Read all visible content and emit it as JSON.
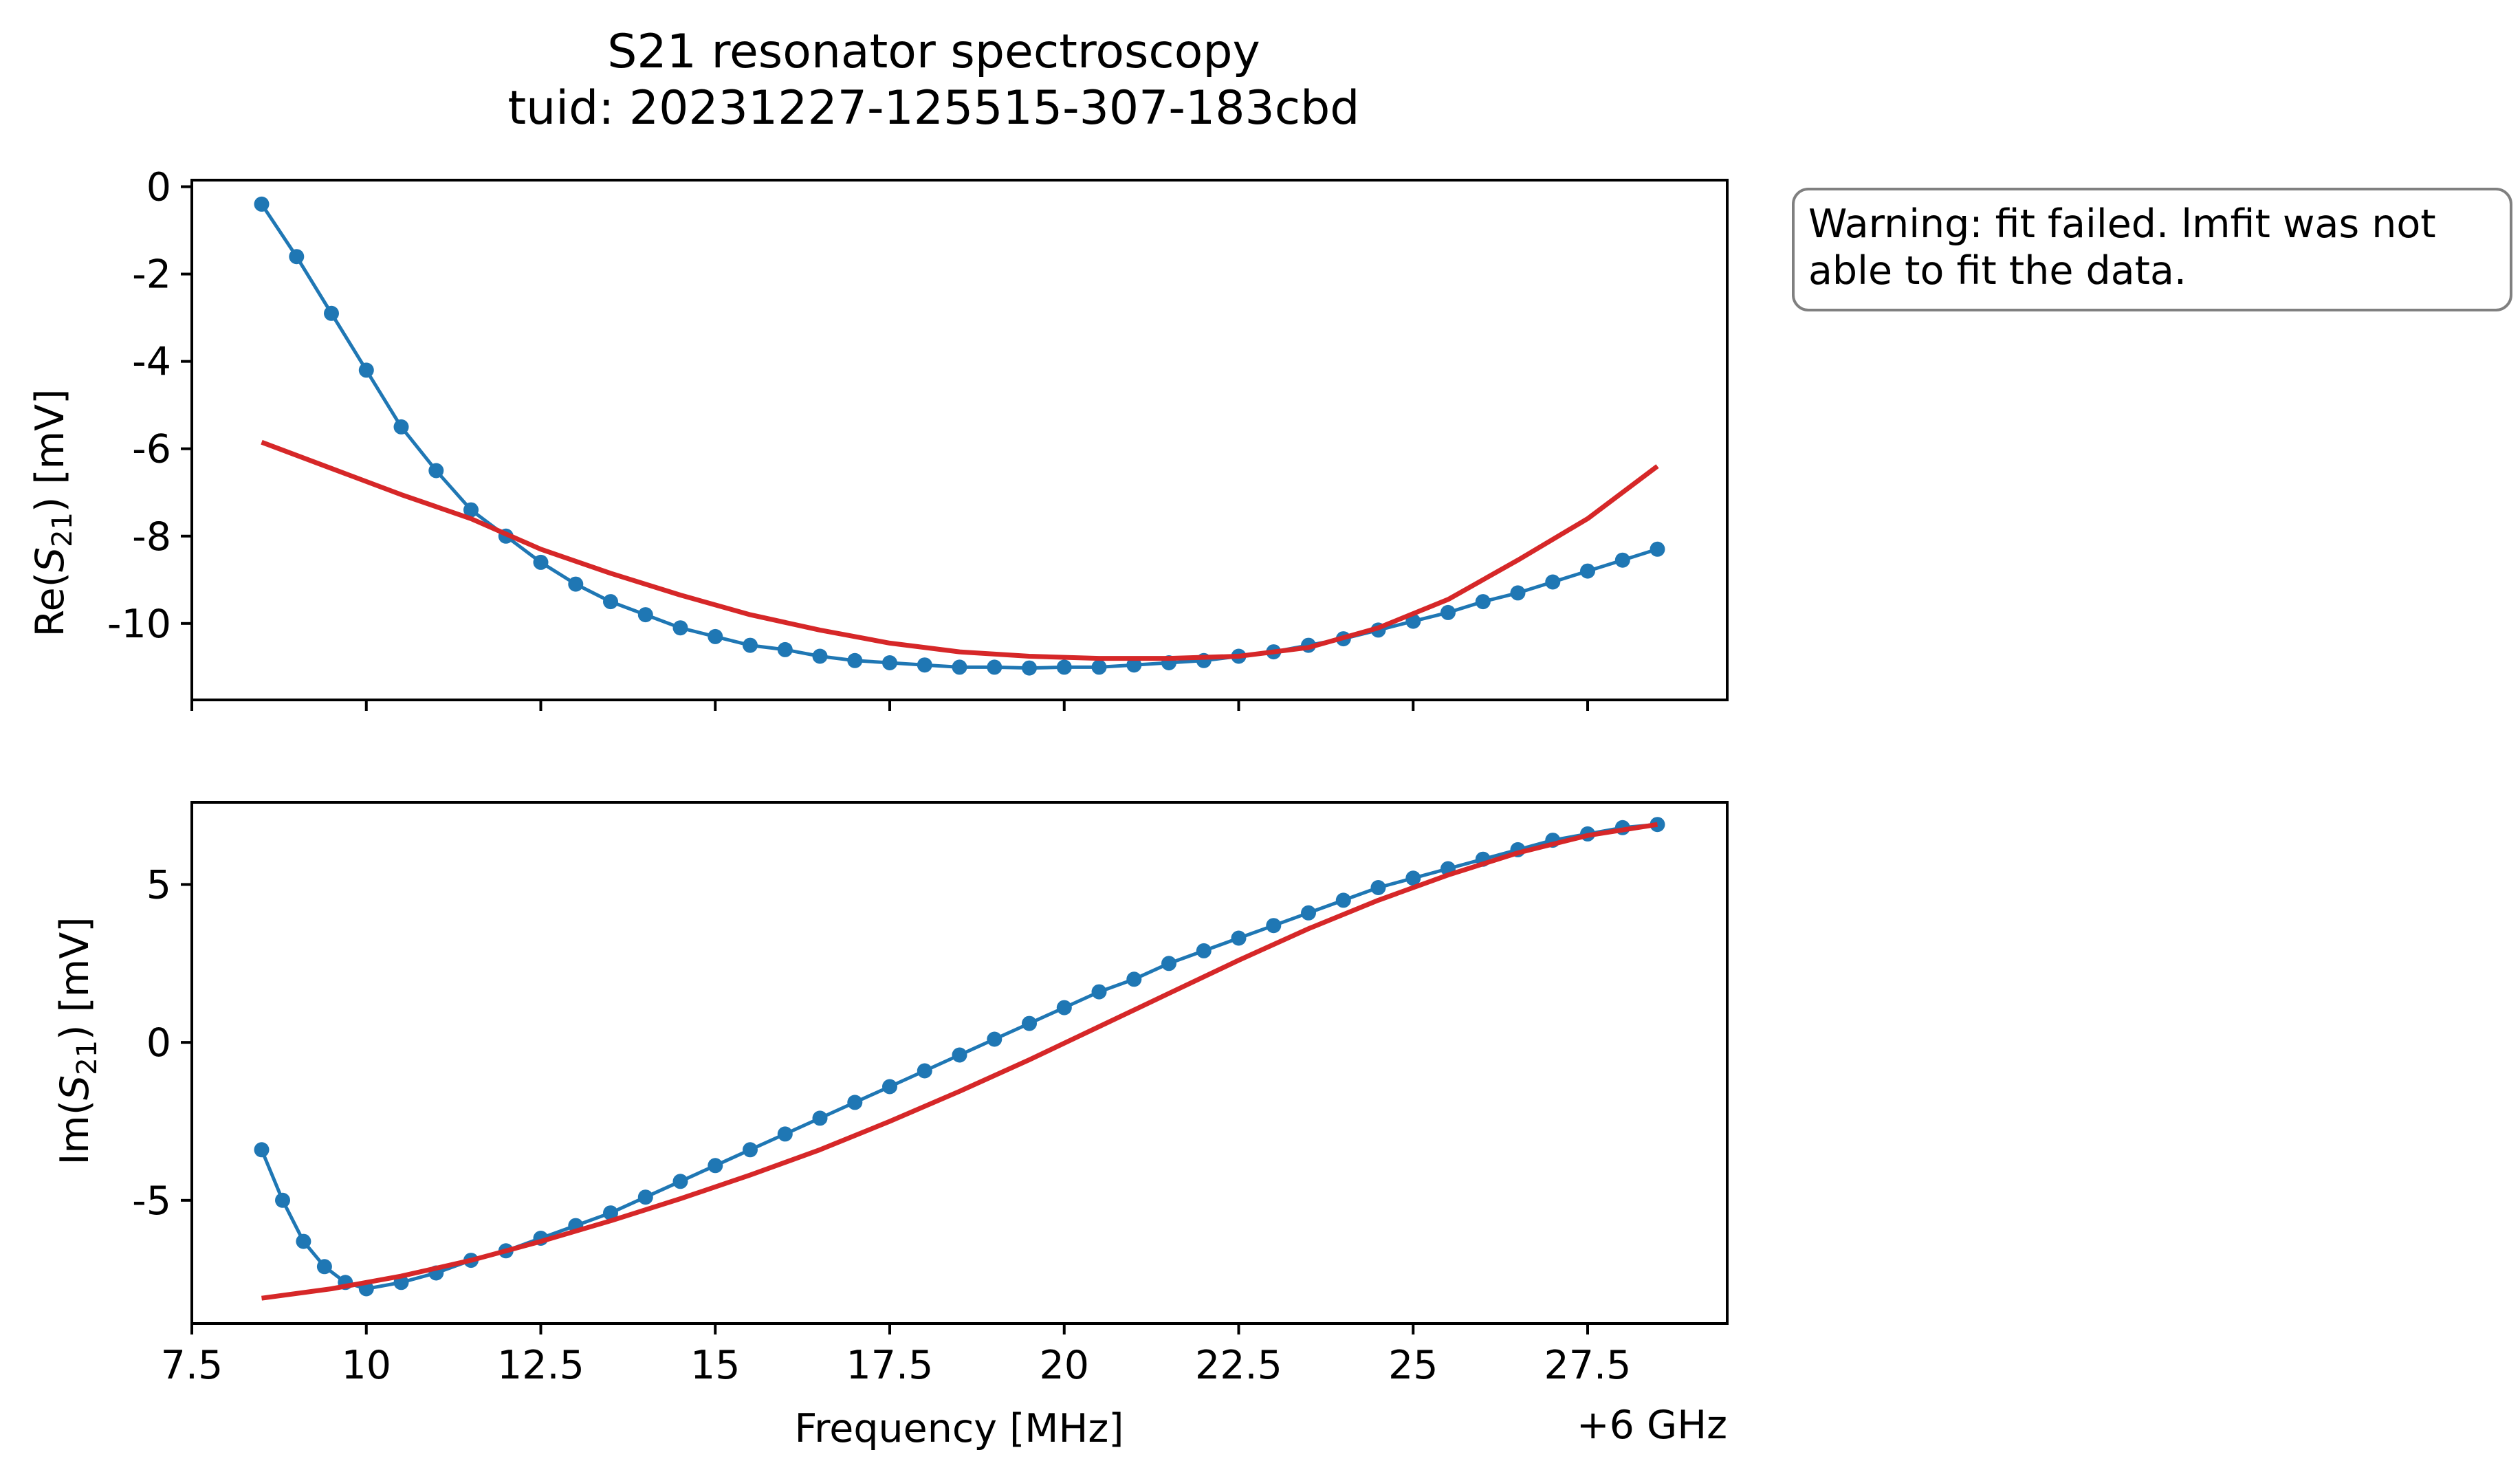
{
  "figure": {
    "title_line1": "S21 resonator spectroscopy",
    "title_line2": "tuid: 20231227-125515-307-183cbd",
    "warning_line1": "Warning: fit failed. lmfit was not",
    "warning_line2": "able to fit the data.",
    "x_offset_label": "+6 GHz"
  },
  "chart_data": [
    {
      "type": "line",
      "panel": "top",
      "title": "",
      "xlabel": "",
      "ylabel": "Re(S21) [mV]",
      "xlim": [
        7.5,
        29.5
      ],
      "ylim": [
        -11.75,
        0.15
      ],
      "xticks": [
        7.5,
        10,
        12.5,
        15,
        17.5,
        20,
        22.5,
        25,
        27.5
      ],
      "xticklabels_visible": false,
      "yticks": [
        0,
        -2,
        -4,
        -6,
        -8,
        -10
      ],
      "yticklabels": [
        "0",
        "-2",
        "-4",
        "-6",
        "-8",
        "-10"
      ],
      "grid": false,
      "series": [
        {
          "style": "markers+line",
          "color": "#1f77b4",
          "x": [
            8.5,
            9.0,
            9.5,
            10.0,
            10.5,
            11.0,
            11.5,
            12.0,
            12.5,
            13.0,
            13.5,
            14.0,
            14.5,
            15.0,
            15.5,
            16.0,
            16.5,
            17.0,
            17.5,
            18.0,
            18.5,
            19.0,
            19.5,
            20.0,
            20.5,
            21.0,
            21.5,
            22.0,
            22.5,
            23.0,
            23.5,
            24.0,
            24.5,
            25.0,
            25.5,
            26.0,
            26.5,
            27.0,
            27.5,
            28.0,
            28.5
          ],
          "y": [
            -0.4,
            -1.6,
            -2.9,
            -4.2,
            -5.5,
            -6.5,
            -7.4,
            -8.0,
            -8.6,
            -9.1,
            -9.5,
            -9.8,
            -10.1,
            -10.3,
            -10.5,
            -10.6,
            -10.75,
            -10.85,
            -10.9,
            -10.95,
            -11.0,
            -11.0,
            -11.02,
            -11.0,
            -11.0,
            -10.95,
            -10.9,
            -10.85,
            -10.75,
            -10.65,
            -10.5,
            -10.35,
            -10.15,
            -9.95,
            -9.75,
            -9.5,
            -9.3,
            -9.05,
            -8.8,
            -8.55,
            -8.3
          ]
        },
        {
          "style": "line",
          "color": "#d62728",
          "x": [
            8.5,
            9.5,
            10.5,
            11.5,
            12.5,
            13.5,
            14.5,
            15.5,
            16.5,
            17.5,
            18.5,
            19.5,
            20.5,
            21.5,
            22.5,
            23.5,
            24.5,
            25.5,
            26.5,
            27.5,
            28.5
          ],
          "y": [
            -5.85,
            -6.45,
            -7.05,
            -7.6,
            -8.3,
            -8.85,
            -9.35,
            -9.8,
            -10.15,
            -10.45,
            -10.65,
            -10.75,
            -10.8,
            -10.8,
            -10.75,
            -10.55,
            -10.1,
            -9.45,
            -8.55,
            -7.6,
            -6.4
          ]
        }
      ]
    },
    {
      "type": "line",
      "panel": "bottom",
      "title": "",
      "xlabel": "Frequency [MHz]",
      "ylabel": "Im(S21) [mV]",
      "xlim": [
        7.5,
        29.5
      ],
      "ylim": [
        -8.9,
        7.6
      ],
      "xticks": [
        7.5,
        10,
        12.5,
        15,
        17.5,
        20,
        22.5,
        25,
        27.5
      ],
      "xticklabels": [
        "7.5",
        "10",
        "12.5",
        "15",
        "17.5",
        "20",
        "22.5",
        "25",
        "27.5"
      ],
      "yticks": [
        5,
        0,
        -5
      ],
      "yticklabels": [
        "5",
        "0",
        "-5"
      ],
      "grid": false,
      "series": [
        {
          "style": "markers+line",
          "color": "#1f77b4",
          "x": [
            8.5,
            8.8,
            9.1,
            9.4,
            9.7,
            10.0,
            10.5,
            11.0,
            11.5,
            12.0,
            12.5,
            13.0,
            13.5,
            14.0,
            14.5,
            15.0,
            15.5,
            16.0,
            16.5,
            17.0,
            17.5,
            18.0,
            18.5,
            19.0,
            19.5,
            20.0,
            20.5,
            21.0,
            21.5,
            22.0,
            22.5,
            23.0,
            23.5,
            24.0,
            24.5,
            25.0,
            25.5,
            26.0,
            26.5,
            27.0,
            27.5,
            28.0,
            28.5
          ],
          "y": [
            -3.4,
            -5.0,
            -6.3,
            -7.1,
            -7.6,
            -7.8,
            -7.6,
            -7.3,
            -6.9,
            -6.6,
            -6.2,
            -5.8,
            -5.4,
            -4.9,
            -4.4,
            -3.9,
            -3.4,
            -2.9,
            -2.4,
            -1.9,
            -1.4,
            -0.9,
            -0.4,
            0.1,
            0.6,
            1.1,
            1.6,
            2.0,
            2.5,
            2.9,
            3.3,
            3.7,
            4.1,
            4.5,
            4.9,
            5.2,
            5.5,
            5.8,
            6.1,
            6.4,
            6.6,
            6.8,
            6.9
          ]
        },
        {
          "style": "line",
          "color": "#d62728",
          "x": [
            8.5,
            9.5,
            10.5,
            11.5,
            12.5,
            13.5,
            14.5,
            15.5,
            16.5,
            17.5,
            18.5,
            19.5,
            20.5,
            21.5,
            22.5,
            23.5,
            24.5,
            25.5,
            26.5,
            27.5,
            28.5
          ],
          "y": [
            -8.1,
            -7.8,
            -7.4,
            -6.9,
            -6.3,
            -5.65,
            -4.95,
            -4.2,
            -3.4,
            -2.5,
            -1.55,
            -0.55,
            0.5,
            1.55,
            2.6,
            3.6,
            4.5,
            5.3,
            6.0,
            6.55,
            6.9
          ]
        }
      ]
    }
  ]
}
